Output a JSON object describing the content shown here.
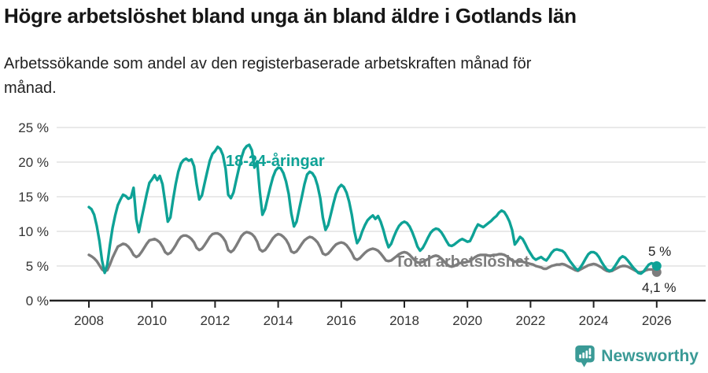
{
  "header": {
    "title": "Högre arbetslöshet bland unga än bland äldre i Gotlands län",
    "subtitle": "Arbetssökande som andel av den registerbaserade arbetskraften månad för månad."
  },
  "footer": {
    "brand": "Newsworthy",
    "brand_color": "#3a9a96"
  },
  "chart_data": {
    "type": "line",
    "title": "",
    "xlabel": "",
    "ylabel": "",
    "unit": "%",
    "grid": true,
    "legend_position": "inline-labels",
    "ylim": [
      0,
      25
    ],
    "y_ticks": [
      "0 %",
      "5 %",
      "10 %",
      "15 %",
      "20 %",
      "25 %"
    ],
    "y_tick_values": [
      0,
      5,
      10,
      15,
      20,
      25
    ],
    "x_ticks": [
      2008,
      2010,
      2012,
      2014,
      2016,
      2018,
      2020,
      2022,
      2024,
      2026
    ],
    "x_start": 2008.0,
    "x_step_months": 1,
    "series": [
      {
        "name": "18-24-åringar",
        "color": "#0EA296",
        "end_label": "5 %",
        "end_value": 5.0,
        "values": [
          13.5,
          13.2,
          12.4,
          10.8,
          8.6,
          5.8,
          4.0,
          5.2,
          8.0,
          10.5,
          12.3,
          13.8,
          14.6,
          15.3,
          15.1,
          14.7,
          14.9,
          16.3,
          11.8,
          9.9,
          11.8,
          13.6,
          15.4,
          17.0,
          17.5,
          18.1,
          17.4,
          18.0,
          16.8,
          14.2,
          11.4,
          12.0,
          14.5,
          16.8,
          18.6,
          19.8,
          20.3,
          20.5,
          20.2,
          20.4,
          19.4,
          16.8,
          14.6,
          15.2,
          16.9,
          18.6,
          20.2,
          21.2,
          21.6,
          22.2,
          21.9,
          21.0,
          19.0,
          15.3,
          14.8,
          15.6,
          17.3,
          19.0,
          20.6,
          21.8,
          22.3,
          22.5,
          21.7,
          19.2,
          20.1,
          15.8,
          12.4,
          13.2,
          14.8,
          16.4,
          17.8,
          18.8,
          19.2,
          19.1,
          18.4,
          17.2,
          15.4,
          12.6,
          10.7,
          11.4,
          13.2,
          15.0,
          16.8,
          18.2,
          18.6,
          18.4,
          17.8,
          16.6,
          14.8,
          12.0,
          10.2,
          10.9,
          12.4,
          14.0,
          15.4,
          16.3,
          16.7,
          16.4,
          15.6,
          14.3,
          12.4,
          10.0,
          8.3,
          8.9,
          10.0,
          10.9,
          11.6,
          12.0,
          12.3,
          11.8,
          12.2,
          11.4,
          10.2,
          8.8,
          7.7,
          8.2,
          9.2,
          10.1,
          10.8,
          11.2,
          11.4,
          11.2,
          10.7,
          9.9,
          8.9,
          7.8,
          7.2,
          7.6,
          8.3,
          9.1,
          9.8,
          10.2,
          10.4,
          10.3,
          9.9,
          9.3,
          8.6,
          8.0,
          7.9,
          8.1,
          8.4,
          8.7,
          8.9,
          8.7,
          8.5,
          8.6,
          9.4,
          10.3,
          11.0,
          10.8,
          10.6,
          10.9,
          11.2,
          11.5,
          11.9,
          12.2,
          12.7,
          13.0,
          12.8,
          12.2,
          11.4,
          10.2,
          8.1,
          8.6,
          9.2,
          8.9,
          8.2,
          7.4,
          6.8,
          6.2,
          5.9,
          6.1,
          6.3,
          6.0,
          5.8,
          6.3,
          6.9,
          7.3,
          7.4,
          7.3,
          7.2,
          6.9,
          6.3,
          5.7,
          5.2,
          4.7,
          4.4,
          4.8,
          5.4,
          6.1,
          6.7,
          7.0,
          7.0,
          6.8,
          6.3,
          5.6,
          5.0,
          4.5,
          4.3,
          4.4,
          4.9,
          5.5,
          6.1,
          6.4,
          6.2,
          5.8,
          5.3,
          4.8,
          4.4,
          4.0,
          3.9,
          4.2,
          4.7,
          5.2,
          5.4,
          5.3,
          5.0
        ]
      },
      {
        "name": "Total arbetslöshet",
        "color": "#7D7D7D",
        "end_label": "4,1 %",
        "end_value": 4.1,
        "values": [
          6.6,
          6.4,
          6.1,
          5.7,
          5.1,
          4.5,
          4.2,
          4.4,
          5.2,
          6.2,
          7.0,
          7.8,
          8.0,
          8.2,
          8.1,
          7.8,
          7.3,
          6.6,
          6.3,
          6.5,
          7.0,
          7.6,
          8.2,
          8.7,
          8.8,
          8.9,
          8.7,
          8.4,
          7.8,
          7.0,
          6.7,
          6.9,
          7.4,
          8.0,
          8.7,
          9.2,
          9.4,
          9.4,
          9.2,
          8.9,
          8.4,
          7.6,
          7.3,
          7.5,
          8.0,
          8.6,
          9.2,
          9.6,
          9.7,
          9.7,
          9.5,
          9.1,
          8.5,
          7.3,
          7.0,
          7.3,
          7.9,
          8.6,
          9.3,
          9.7,
          9.9,
          9.8,
          9.6,
          9.2,
          8.5,
          7.4,
          7.1,
          7.3,
          7.8,
          8.4,
          9.0,
          9.4,
          9.6,
          9.5,
          9.2,
          8.8,
          8.1,
          7.1,
          6.9,
          7.1,
          7.6,
          8.2,
          8.7,
          9.0,
          9.2,
          9.1,
          8.8,
          8.4,
          7.7,
          6.8,
          6.6,
          6.8,
          7.2,
          7.7,
          8.1,
          8.3,
          8.4,
          8.3,
          8.0,
          7.5,
          6.9,
          6.1,
          5.9,
          6.1,
          6.5,
          6.9,
          7.2,
          7.4,
          7.5,
          7.4,
          7.2,
          6.8,
          6.3,
          5.8,
          5.7,
          5.8,
          6.1,
          6.4,
          6.7,
          6.9,
          7.0,
          6.9,
          6.6,
          6.2,
          5.8,
          5.5,
          5.5,
          5.6,
          5.8,
          6.0,
          6.2,
          6.4,
          6.5,
          6.4,
          6.1,
          5.7,
          5.3,
          5.0,
          4.9,
          5.0,
          5.2,
          5.4,
          5.5,
          5.5,
          5.6,
          5.7,
          6.0,
          6.3,
          6.5,
          6.6,
          6.6,
          6.6,
          6.5,
          6.5,
          6.6,
          6.6,
          6.7,
          6.7,
          6.6,
          6.4,
          6.1,
          5.8,
          5.6,
          5.7,
          5.7,
          5.6,
          5.5,
          5.4,
          5.3,
          5.2,
          5.0,
          4.9,
          4.8,
          4.6,
          4.6,
          4.8,
          5.0,
          5.1,
          5.2,
          5.2,
          5.3,
          5.2,
          5.0,
          4.8,
          4.6,
          4.4,
          4.3,
          4.5,
          4.7,
          4.9,
          5.1,
          5.2,
          5.3,
          5.2,
          5.0,
          4.8,
          4.5,
          4.3,
          4.2,
          4.3,
          4.5,
          4.7,
          4.9,
          5.0,
          5.0,
          4.9,
          4.7,
          4.5,
          4.3,
          4.1,
          4.1,
          4.2,
          4.4,
          4.5,
          4.5,
          4.4,
          4.1
        ]
      }
    ]
  }
}
